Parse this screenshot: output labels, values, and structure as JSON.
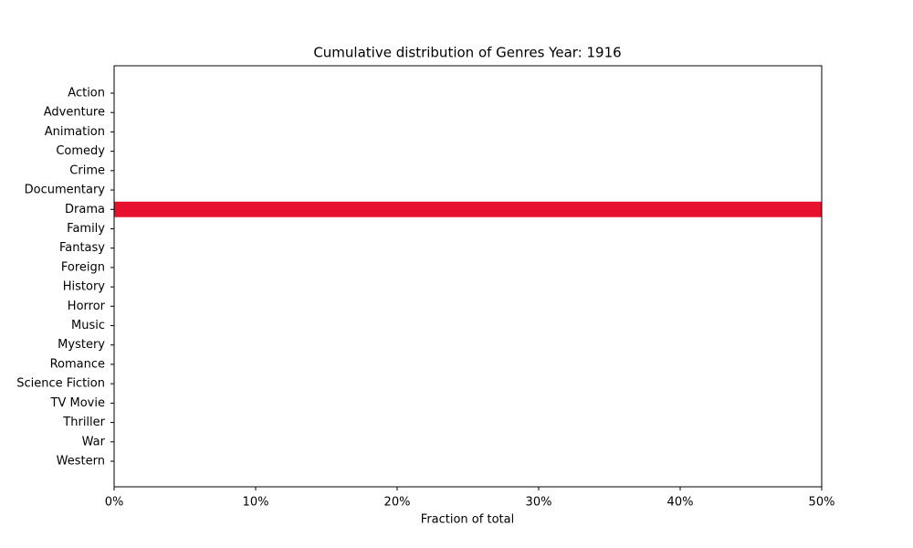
{
  "chart_data": {
    "type": "barh",
    "title": "Cumulative distribution of Genres Year: 1916",
    "xlabel": "Fraction of total",
    "categories": [
      "Action",
      "Adventure",
      "Animation",
      "Comedy",
      "Crime",
      "Documentary",
      "Drama",
      "Family",
      "Fantasy",
      "Foreign",
      "History",
      "Horror",
      "Music",
      "Mystery",
      "Romance",
      "Science Fiction",
      "TV Movie",
      "Thriller",
      "War",
      "Western"
    ],
    "values": [
      0,
      0,
      0,
      0,
      0,
      0,
      50,
      0,
      0,
      0,
      0,
      0,
      0,
      0,
      0,
      0,
      0,
      0,
      0,
      0
    ],
    "color": "#e8112d",
    "xlim": [
      0,
      50
    ],
    "xticks": [
      {
        "value": 0,
        "label": "0%"
      },
      {
        "value": 10,
        "label": "10%"
      },
      {
        "value": 20,
        "label": "20%"
      },
      {
        "value": 30,
        "label": "30%"
      },
      {
        "value": 40,
        "label": "40%"
      },
      {
        "value": 50,
        "label": "50%"
      }
    ],
    "grid": false
  }
}
